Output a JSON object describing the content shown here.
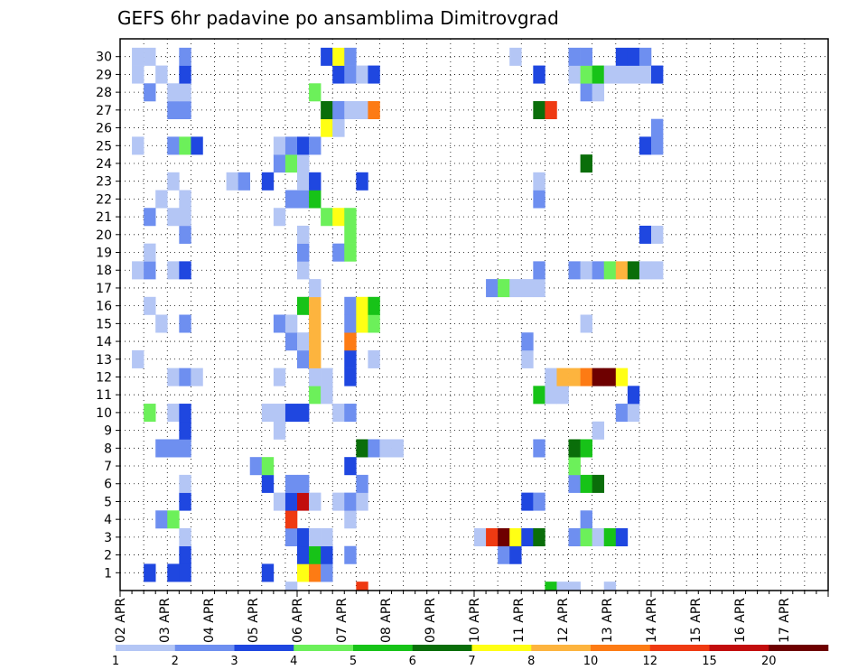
{
  "title": "GEFS 6hr padavine po ansamblima Dimitrovgrad",
  "chart_data": {
    "type": "heatmap",
    "title": "GEFS 6hr padavine po ansamblima Dimitrovgrad",
    "xlabel": "",
    "ylabel": "",
    "grid": "dotted",
    "x_ticks": [
      "02 APR",
      "03 APR",
      "04 APR",
      "05 APR",
      "06 APR",
      "07 APR",
      "08 APR",
      "09 APR",
      "10 APR",
      "11 APR",
      "12 APR",
      "13 APR",
      "14 APR",
      "15 APR",
      "16 APR",
      "17 APR"
    ],
    "time_steps": 60,
    "y_ticks": [
      1,
      2,
      3,
      4,
      5,
      6,
      7,
      8,
      9,
      10,
      11,
      12,
      13,
      14,
      15,
      16,
      17,
      18,
      19,
      20,
      21,
      22,
      23,
      24,
      25,
      26,
      27,
      28,
      29,
      30
    ],
    "members": 30,
    "legend": {
      "position": "bottom",
      "labels": [
        "1",
        "2",
        "3",
        "4",
        "5",
        "6",
        "7",
        "8",
        "10",
        "12",
        "15",
        "20"
      ],
      "colors": [
        "#b4c6f5",
        "#6e8ff0",
        "#1f47e0",
        "#6cf05a",
        "#17c318",
        "#0a6e0a",
        "#ffff14",
        "#fdb43e",
        "#fd7b14",
        "#ef3a12",
        "#c20d0d",
        "#6e0000"
      ]
    },
    "cells": [
      [
        1,
        2,
        3
      ],
      [
        1,
        4,
        3
      ],
      [
        1,
        5,
        3
      ],
      [
        1,
        12,
        3
      ],
      [
        1,
        15,
        7
      ],
      [
        1,
        16,
        9
      ],
      [
        1,
        17,
        2
      ],
      [
        2,
        5,
        3
      ],
      [
        2,
        15,
        3
      ],
      [
        2,
        16,
        5
      ],
      [
        2,
        17,
        3
      ],
      [
        2,
        19,
        2
      ],
      [
        2,
        32,
        2
      ],
      [
        2,
        33,
        3
      ],
      [
        3,
        5,
        1
      ],
      [
        3,
        14,
        2
      ],
      [
        3,
        15,
        3
      ],
      [
        3,
        16,
        1
      ],
      [
        3,
        17,
        1
      ],
      [
        3,
        30,
        1
      ],
      [
        3,
        31,
        10
      ],
      [
        3,
        32,
        12
      ],
      [
        3,
        33,
        7
      ],
      [
        3,
        34,
        3
      ],
      [
        3,
        35,
        6
      ],
      [
        3,
        38,
        2
      ],
      [
        3,
        39,
        4
      ],
      [
        3,
        40,
        1
      ],
      [
        3,
        41,
        5
      ],
      [
        3,
        42,
        3
      ],
      [
        4,
        3,
        2
      ],
      [
        4,
        4,
        4
      ],
      [
        4,
        14,
        10
      ],
      [
        4,
        19,
        1
      ],
      [
        4,
        39,
        2
      ],
      [
        5,
        5,
        3
      ],
      [
        5,
        13,
        1
      ],
      [
        5,
        14,
        3
      ],
      [
        5,
        15,
        11
      ],
      [
        5,
        16,
        1
      ],
      [
        5,
        18,
        1
      ],
      [
        5,
        19,
        2
      ],
      [
        5,
        20,
        1
      ],
      [
        5,
        34,
        3
      ],
      [
        5,
        35,
        2
      ],
      [
        6,
        5,
        1
      ],
      [
        6,
        12,
        3
      ],
      [
        6,
        14,
        2
      ],
      [
        6,
        15,
        2
      ],
      [
        6,
        20,
        2
      ],
      [
        6,
        38,
        2
      ],
      [
        6,
        39,
        5
      ],
      [
        6,
        40,
        6
      ],
      [
        7,
        11,
        2
      ],
      [
        7,
        12,
        4
      ],
      [
        7,
        19,
        3
      ],
      [
        7,
        38,
        4
      ],
      [
        8,
        3,
        2
      ],
      [
        8,
        4,
        2
      ],
      [
        8,
        5,
        2
      ],
      [
        8,
        20,
        6
      ],
      [
        8,
        21,
        2
      ],
      [
        8,
        22,
        1
      ],
      [
        8,
        23,
        1
      ],
      [
        8,
        35,
        2
      ],
      [
        8,
        38,
        6
      ],
      [
        8,
        39,
        5
      ],
      [
        9,
        5,
        3
      ],
      [
        9,
        13,
        1
      ],
      [
        9,
        40,
        1
      ],
      [
        10,
        2,
        4
      ],
      [
        10,
        4,
        1
      ],
      [
        10,
        5,
        3
      ],
      [
        10,
        12,
        1
      ],
      [
        10,
        13,
        1
      ],
      [
        10,
        14,
        3
      ],
      [
        10,
        15,
        3
      ],
      [
        10,
        18,
        1
      ],
      [
        10,
        19,
        2
      ],
      [
        10,
        42,
        2
      ],
      [
        10,
        43,
        1
      ],
      [
        11,
        16,
        4
      ],
      [
        11,
        17,
        1
      ],
      [
        11,
        35,
        5
      ],
      [
        11,
        36,
        1
      ],
      [
        11,
        37,
        1
      ],
      [
        11,
        43,
        3
      ],
      [
        12,
        4,
        1
      ],
      [
        12,
        5,
        2
      ],
      [
        12,
        6,
        1
      ],
      [
        12,
        13,
        1
      ],
      [
        12,
        16,
        1
      ],
      [
        12,
        17,
        1
      ],
      [
        12,
        19,
        3
      ],
      [
        12,
        36,
        1
      ],
      [
        12,
        37,
        8
      ],
      [
        12,
        38,
        8
      ],
      [
        12,
        39,
        9
      ],
      [
        12,
        40,
        12
      ],
      [
        12,
        41,
        12
      ],
      [
        12,
        42,
        7
      ],
      [
        13,
        1,
        1
      ],
      [
        13,
        15,
        2
      ],
      [
        13,
        16,
        8
      ],
      [
        13,
        19,
        3
      ],
      [
        13,
        21,
        1
      ],
      [
        13,
        34,
        1
      ],
      [
        14,
        14,
        2
      ],
      [
        14,
        15,
        1
      ],
      [
        14,
        16,
        8
      ],
      [
        14,
        19,
        9
      ],
      [
        14,
        34,
        2
      ],
      [
        15,
        3,
        1
      ],
      [
        15,
        5,
        2
      ],
      [
        15,
        13,
        2
      ],
      [
        15,
        14,
        1
      ],
      [
        15,
        16,
        8
      ],
      [
        15,
        19,
        2
      ],
      [
        15,
        20,
        7
      ],
      [
        15,
        21,
        4
      ],
      [
        15,
        39,
        1
      ],
      [
        16,
        2,
        1
      ],
      [
        16,
        15,
        5
      ],
      [
        16,
        16,
        8
      ],
      [
        16,
        19,
        2
      ],
      [
        16,
        20,
        7
      ],
      [
        16,
        21,
        5
      ],
      [
        17,
        16,
        1
      ],
      [
        17,
        31,
        2
      ],
      [
        17,
        32,
        4
      ],
      [
        17,
        33,
        1
      ],
      [
        17,
        34,
        1
      ],
      [
        17,
        35,
        1
      ],
      [
        18,
        1,
        1
      ],
      [
        18,
        2,
        2
      ],
      [
        18,
        4,
        1
      ],
      [
        18,
        5,
        3
      ],
      [
        18,
        15,
        1
      ],
      [
        18,
        35,
        2
      ],
      [
        18,
        38,
        2
      ],
      [
        18,
        39,
        1
      ],
      [
        18,
        40,
        2
      ],
      [
        18,
        41,
        4
      ],
      [
        18,
        42,
        8
      ],
      [
        18,
        43,
        6
      ],
      [
        18,
        44,
        1
      ],
      [
        18,
        45,
        1
      ],
      [
        19,
        2,
        1
      ],
      [
        19,
        15,
        2
      ],
      [
        19,
        18,
        2
      ],
      [
        19,
        19,
        4
      ],
      [
        20,
        5,
        2
      ],
      [
        20,
        15,
        1
      ],
      [
        20,
        19,
        4
      ],
      [
        20,
        44,
        3
      ],
      [
        20,
        45,
        1
      ],
      [
        21,
        2,
        2
      ],
      [
        21,
        4,
        1
      ],
      [
        21,
        5,
        1
      ],
      [
        21,
        13,
        1
      ],
      [
        21,
        17,
        4
      ],
      [
        21,
        18,
        7
      ],
      [
        21,
        19,
        4
      ],
      [
        22,
        3,
        1
      ],
      [
        22,
        5,
        1
      ],
      [
        22,
        14,
        2
      ],
      [
        22,
        15,
        2
      ],
      [
        22,
        16,
        5
      ],
      [
        22,
        35,
        2
      ],
      [
        23,
        4,
        1
      ],
      [
        23,
        9,
        1
      ],
      [
        23,
        10,
        2
      ],
      [
        23,
        12,
        3
      ],
      [
        23,
        15,
        1
      ],
      [
        23,
        16,
        3
      ],
      [
        23,
        20,
        3
      ],
      [
        23,
        35,
        1
      ],
      [
        24,
        13,
        2
      ],
      [
        24,
        14,
        4
      ],
      [
        24,
        15,
        1
      ],
      [
        24,
        39,
        6
      ],
      [
        25,
        1,
        1
      ],
      [
        25,
        4,
        2
      ],
      [
        25,
        5,
        4
      ],
      [
        25,
        6,
        3
      ],
      [
        25,
        13,
        1
      ],
      [
        25,
        14,
        2
      ],
      [
        25,
        15,
        3
      ],
      [
        25,
        16,
        2
      ],
      [
        25,
        44,
        3
      ],
      [
        25,
        45,
        2
      ],
      [
        26,
        17,
        7
      ],
      [
        26,
        18,
        1
      ],
      [
        26,
        45,
        2
      ],
      [
        27,
        4,
        2
      ],
      [
        27,
        5,
        2
      ],
      [
        27,
        17,
        6
      ],
      [
        27,
        18,
        2
      ],
      [
        27,
        19,
        1
      ],
      [
        27,
        20,
        1
      ],
      [
        27,
        21,
        9
      ],
      [
        27,
        35,
        6
      ],
      [
        27,
        36,
        10
      ],
      [
        28,
        2,
        2
      ],
      [
        28,
        4,
        1
      ],
      [
        28,
        5,
        1
      ],
      [
        28,
        16,
        4
      ],
      [
        28,
        39,
        2
      ],
      [
        28,
        40,
        1
      ],
      [
        29,
        1,
        1
      ],
      [
        29,
        3,
        1
      ],
      [
        29,
        5,
        3
      ],
      [
        29,
        18,
        3
      ],
      [
        29,
        19,
        2
      ],
      [
        29,
        20,
        1
      ],
      [
        29,
        21,
        3
      ],
      [
        29,
        35,
        3
      ],
      [
        29,
        38,
        1
      ],
      [
        29,
        39,
        4
      ],
      [
        29,
        40,
        5
      ],
      [
        29,
        41,
        1
      ],
      [
        29,
        42,
        1
      ],
      [
        29,
        43,
        1
      ],
      [
        29,
        44,
        1
      ],
      [
        29,
        45,
        3
      ],
      [
        30,
        1,
        1
      ],
      [
        30,
        2,
        1
      ],
      [
        30,
        5,
        2
      ],
      [
        30,
        17,
        3
      ],
      [
        30,
        18,
        7
      ],
      [
        30,
        19,
        2
      ],
      [
        30,
        33,
        1
      ],
      [
        30,
        38,
        2
      ],
      [
        30,
        39,
        2
      ],
      [
        30,
        42,
        3
      ],
      [
        30,
        43,
        3
      ],
      [
        30,
        44,
        2
      ]
    ],
    "bottom_strip": [
      [
        14,
        1
      ],
      [
        20,
        10
      ],
      [
        36,
        5
      ],
      [
        37,
        1
      ],
      [
        38,
        1
      ],
      [
        41,
        1
      ]
    ]
  }
}
